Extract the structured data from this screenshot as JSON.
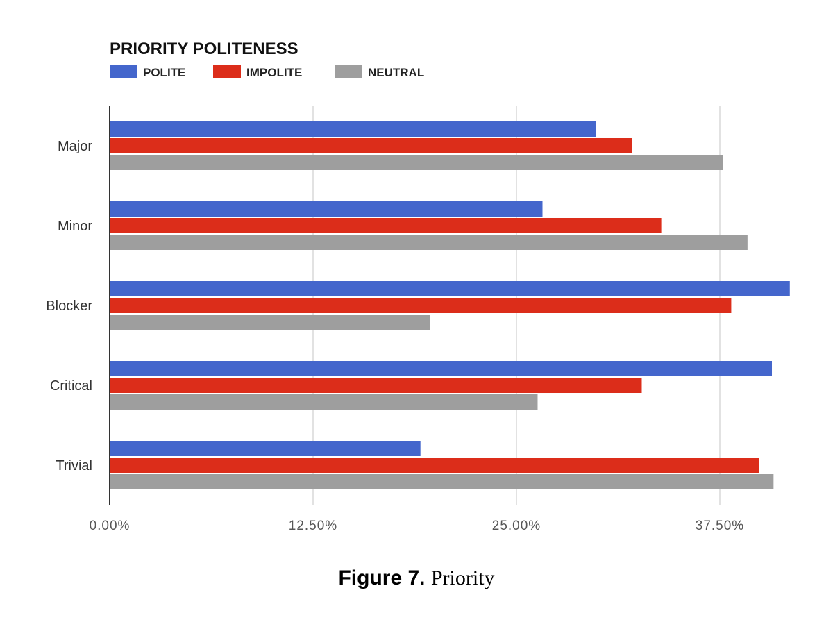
{
  "chart_data": {
    "type": "bar",
    "orientation": "horizontal",
    "title": "PRIORITY POLITENESS",
    "categories": [
      "Major",
      "Minor",
      "Blocker",
      "Critical",
      "Trivial"
    ],
    "series": [
      {
        "name": "POLITE",
        "color": "#4466cc",
        "values": [
          29.9,
          26.6,
          41.8,
          40.7,
          19.1
        ]
      },
      {
        "name": "IMPOLITE",
        "color": "#dc2d1a",
        "values": [
          32.1,
          33.9,
          38.2,
          32.7,
          39.9
        ]
      },
      {
        "name": "NEUTRAL",
        "color": "#9e9e9e",
        "values": [
          37.7,
          39.2,
          19.7,
          26.3,
          40.8
        ]
      }
    ],
    "xticks": [
      "0.00%",
      "12.50%",
      "25.00%",
      "37.50%"
    ],
    "xtick_values": [
      0,
      12.5,
      25,
      37.5
    ],
    "xlim": [
      0,
      42
    ],
    "grid": true,
    "legend_position": "top-left",
    "xlabel": "",
    "ylabel": ""
  },
  "caption": {
    "label": "Figure 7.",
    "text": "Priority"
  }
}
